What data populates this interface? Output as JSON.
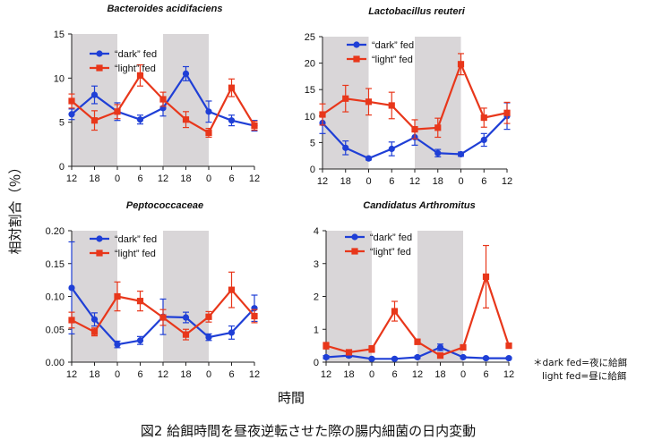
{
  "figure": {
    "y_axis_label": "相対割合（％）",
    "x_axis_label": "時間",
    "note_line1": "＊dark fed=夜に給餌",
    "note_line2": "light fed=昼に給餌",
    "caption": "図2 給餌時間を昼夜逆転させた際の腸内細菌の日内変動"
  },
  "colors": {
    "dark_fed": "#1f3fd6",
    "light_fed": "#e8371b",
    "shade": "#d9d6d8",
    "axis": "#222222"
  },
  "chart_data": [
    {
      "type": "line",
      "title": "Bacteroides acidifaciens",
      "categories": [
        "12",
        "18",
        "0",
        "6",
        "12",
        "18",
        "0",
        "6",
        "12"
      ],
      "ylim": [
        0,
        15
      ],
      "yticks": [
        "0",
        "5",
        "10",
        "15"
      ],
      "shaded_ranges": [
        [
          0,
          2
        ],
        [
          4,
          6
        ]
      ],
      "series": [
        {
          "name": "“dark” fed",
          "values": [
            5.9,
            8.1,
            6.2,
            5.3,
            6.6,
            10.5,
            6.2,
            5.2,
            4.6
          ],
          "errors": [
            0.6,
            1.0,
            1.0,
            0.5,
            0.9,
            0.8,
            1.2,
            0.6,
            0.6
          ]
        },
        {
          "name": "“light” fed",
          "values": [
            7.4,
            5.2,
            6.2,
            10.3,
            7.6,
            5.3,
            3.8,
            8.9,
            4.6
          ],
          "errors": [
            0.8,
            1.1,
            0.8,
            1.2,
            0.8,
            0.9,
            0.5,
            1.0,
            0.5
          ]
        }
      ]
    },
    {
      "type": "line",
      "title": "Lactobacillus reuteri",
      "categories": [
        "12",
        "18",
        "0",
        "6",
        "12",
        "18",
        "0",
        "6",
        "12"
      ],
      "ylim": [
        0,
        25
      ],
      "yticks": [
        "0",
        "5",
        "10",
        "15",
        "20",
        "25"
      ],
      "shaded_ranges": [
        [
          0,
          2
        ],
        [
          4,
          6
        ]
      ],
      "series": [
        {
          "name": "“dark” fed",
          "values": [
            8.7,
            4.0,
            2.0,
            3.8,
            6.0,
            3.0,
            2.8,
            5.5,
            10.0
          ],
          "errors": [
            2.0,
            1.3,
            0.3,
            1.3,
            1.5,
            0.7,
            0.4,
            1.2,
            2.5
          ]
        },
        {
          "name": "“light” fed",
          "values": [
            10.3,
            13.3,
            12.7,
            12.0,
            7.5,
            7.8,
            19.8,
            9.7,
            10.6
          ],
          "errors": [
            2.0,
            2.5,
            2.5,
            2.5,
            1.8,
            1.8,
            2.0,
            1.8,
            2.0
          ]
        }
      ]
    },
    {
      "type": "line",
      "title": "Peptococcaceae",
      "categories": [
        "12",
        "18",
        "0",
        "6",
        "12",
        "18",
        "0",
        "6",
        "12"
      ],
      "ylim": [
        0,
        0.2
      ],
      "yticks": [
        "0.00",
        "0.05",
        "0.10",
        "0.15",
        "0.20"
      ],
      "shaded_ranges": [
        [
          0,
          2
        ],
        [
          4,
          6
        ]
      ],
      "series": [
        {
          "name": "“dark” fed",
          "values": [
            0.113,
            0.065,
            0.027,
            0.033,
            0.069,
            0.068,
            0.038,
            0.045,
            0.082
          ],
          "errors": [
            0.07,
            0.01,
            0.005,
            0.006,
            0.027,
            0.008,
            0.005,
            0.01,
            0.02
          ]
        },
        {
          "name": "“light” fed",
          "values": [
            0.064,
            0.046,
            0.1,
            0.093,
            0.068,
            0.042,
            0.069,
            0.11,
            0.07
          ],
          "errors": [
            0.012,
            0.006,
            0.022,
            0.015,
            0.012,
            0.008,
            0.008,
            0.027,
            0.01
          ]
        }
      ]
    },
    {
      "type": "line",
      "title": "Candidatus Arthromitus",
      "categories": [
        "12",
        "18",
        "0",
        "6",
        "12",
        "18",
        "0",
        "6",
        "12"
      ],
      "ylim": [
        0,
        4
      ],
      "yticks": [
        "0",
        "1",
        "2",
        "3",
        "4"
      ],
      "shaded_ranges": [
        [
          0,
          2
        ],
        [
          4,
          6
        ]
      ],
      "series": [
        {
          "name": "“dark” fed",
          "values": [
            0.15,
            0.2,
            0.1,
            0.1,
            0.15,
            0.45,
            0.15,
            0.12,
            0.12
          ],
          "errors": [
            0.05,
            0.05,
            0.03,
            0.03,
            0.04,
            0.1,
            0.03,
            0.03,
            0.03
          ]
        },
        {
          "name": "“light” fed",
          "values": [
            0.5,
            0.3,
            0.4,
            1.55,
            0.62,
            0.2,
            0.45,
            2.6,
            0.5
          ],
          "errors": [
            0.1,
            0.06,
            0.1,
            0.3,
            0.08,
            0.05,
            0.06,
            0.95,
            0.05
          ]
        }
      ]
    }
  ]
}
